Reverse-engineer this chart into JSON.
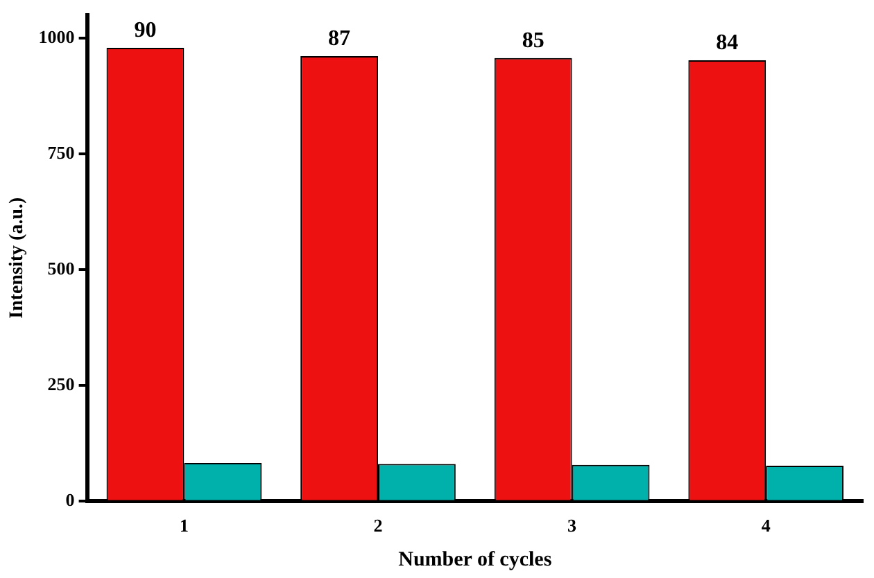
{
  "chart_data": {
    "type": "bar",
    "xlabel": "Number of cycles",
    "ylabel": "Intensity (a.u.)",
    "categories": [
      "1",
      "2",
      "3",
      "4"
    ],
    "series": [
      {
        "color": "#ee1111",
        "values": [
          979,
          961,
          957,
          952
        ]
      },
      {
        "color": "#00b0aa",
        "values": [
          82,
          80,
          78,
          76
        ]
      }
    ],
    "annotations": [
      {
        "text": "90",
        "x": "1",
        "y": 979
      },
      {
        "text": "87",
        "x": "2",
        "y": 961
      },
      {
        "text": "85",
        "x": "3",
        "y": 957
      },
      {
        "text": "84",
        "x": "4",
        "y": 952
      }
    ],
    "ylim": [
      0,
      1050
    ],
    "yticks": [
      0,
      250,
      500,
      750,
      1000
    ],
    "grid": false,
    "legend": false
  }
}
